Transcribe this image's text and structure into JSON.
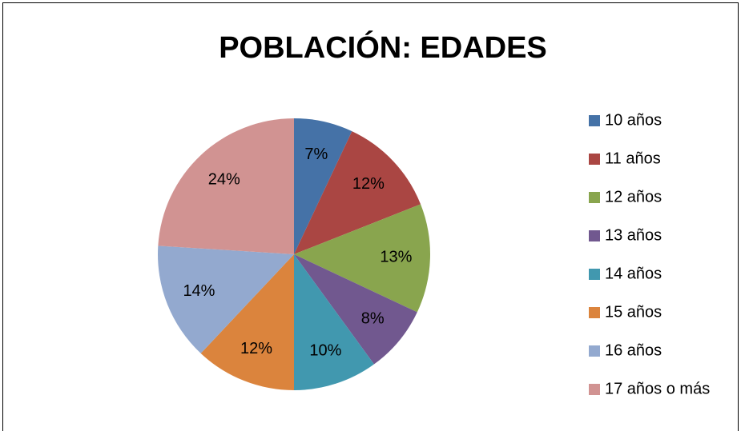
{
  "chart_data": {
    "type": "pie",
    "title": "POBLACIÓN: EDADES",
    "categories": [
      "10 años",
      "11 años",
      "12 años",
      "13 años",
      "14 años",
      "15 años",
      "16 años",
      "17 años o más"
    ],
    "values": [
      7,
      12,
      13,
      8,
      10,
      12,
      14,
      24
    ],
    "value_labels": [
      "7%",
      "12%",
      "13%",
      "8%",
      "10%",
      "12%",
      "14%",
      "24%"
    ],
    "colors": [
      "#4572a7",
      "#aa4643",
      "#89a54e",
      "#71588f",
      "#4198af",
      "#db843d",
      "#93a9cf",
      "#d19392"
    ],
    "legend": "right"
  }
}
